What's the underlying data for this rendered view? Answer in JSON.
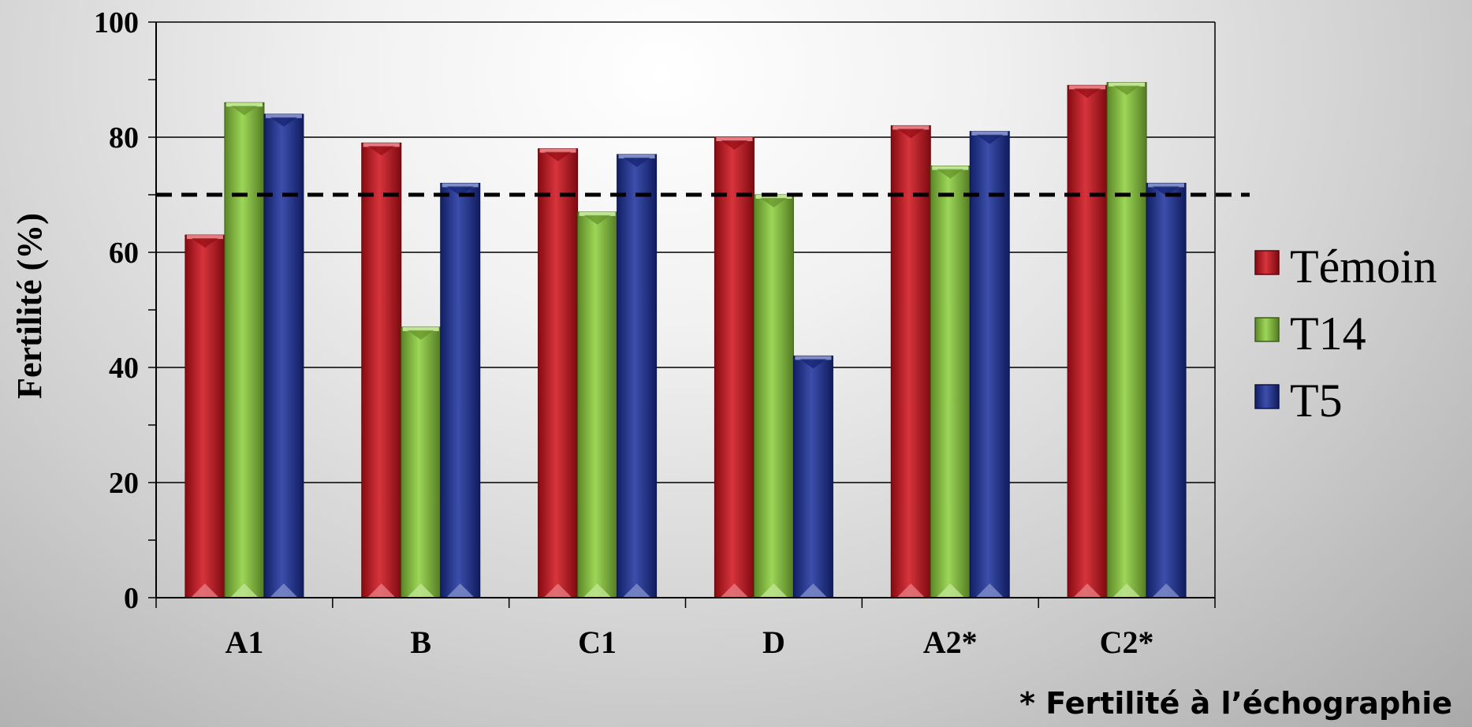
{
  "chart_data": {
    "type": "bar",
    "categories": [
      "A1",
      "B",
      "C1",
      "D",
      "A2*",
      "C2*"
    ],
    "series": [
      {
        "name": "Témoin",
        "values": [
          63,
          79,
          78,
          80,
          82,
          89
        ],
        "color": "#d0101a"
      },
      {
        "name": "T14",
        "values": [
          86,
          47,
          67,
          70,
          75,
          89.5
        ],
        "color": "#8ccf3a"
      },
      {
        "name": "T5",
        "values": [
          84,
          72,
          77,
          42,
          81,
          72
        ],
        "color": "#1a2f9c"
      }
    ],
    "ylabel": "Fertilité (%)",
    "ylim": [
      0,
      100
    ],
    "yticks": [
      0,
      20,
      40,
      60,
      80,
      100
    ],
    "grid": true,
    "reference_line": {
      "value": 70,
      "style": "dashed",
      "color": "#000000"
    },
    "legend_position": "right",
    "footnote": "* Fertilité à l’échographie"
  }
}
